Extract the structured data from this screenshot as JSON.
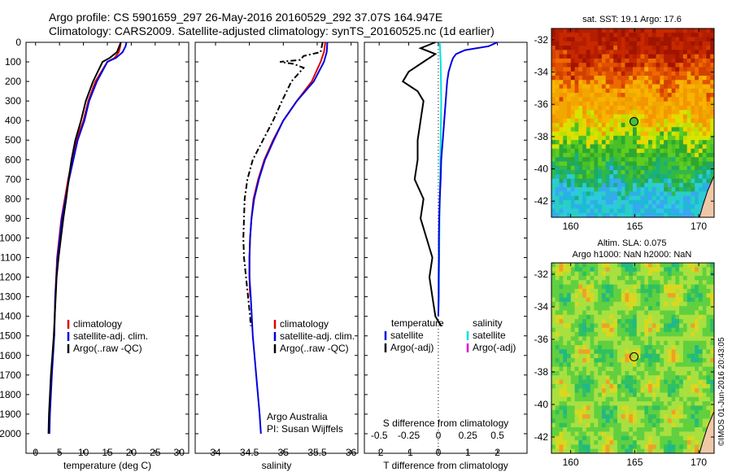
{
  "header": {
    "line1": "Argo profile: CS 5901659_297 26-May-2016 20160529_292 37.07S 164.947E",
    "line2": "Climatology: CARS2009. Satellite-adjusted climatology: synTS_20160525.nc (1d earlier)"
  },
  "credit": "Argo Australia",
  "pi": "PI: Susan Wijffels",
  "stamp": "©IMOS 01-Jun-2016 20:43:05",
  "colors": {
    "climatology": "#e00000",
    "satellite": "#0000e0",
    "argo": "#000000",
    "sat_salinity": "#00e0e0",
    "argo_salinity": "#e000e0"
  },
  "depth_ticks": [
    0,
    100,
    200,
    300,
    400,
    500,
    600,
    700,
    800,
    900,
    1000,
    1100,
    1200,
    1300,
    1400,
    1500,
    1600,
    1700,
    1800,
    1900,
    2000
  ],
  "chart_data": [
    {
      "type": "line",
      "xlabel": "temperature (deg C)",
      "xlim": [
        -2,
        32
      ],
      "xticks": [
        0,
        5,
        10,
        15,
        20,
        25,
        30
      ],
      "ylim": [
        0,
        2100
      ],
      "legend": [
        "climatology",
        "satellite-adj. clim.",
        "Argo(..raw -QC)"
      ],
      "series": [
        {
          "name": "climatology",
          "depth": [
            0,
            20,
            50,
            80,
            100,
            200,
            300,
            400,
            500,
            700,
            900,
            1100,
            1300,
            1500
          ],
          "values": [
            17.8,
            17.7,
            17.4,
            16.5,
            15.0,
            12.5,
            11.0,
            10.0,
            8.5,
            6.8,
            5.4,
            4.5,
            4.1,
            3.9
          ]
        },
        {
          "name": "satellite-adj. clim.",
          "depth": [
            0,
            20,
            50,
            80,
            100,
            200,
            300,
            400,
            500,
            700,
            900,
            1100,
            1300,
            1500,
            1700,
            1900,
            2000
          ],
          "values": [
            19.0,
            18.8,
            18.2,
            16.8,
            15.0,
            12.8,
            11.2,
            10.2,
            8.8,
            7.0,
            5.5,
            4.6,
            4.1,
            3.9,
            3.4,
            3.0,
            2.9
          ]
        },
        {
          "name": "Argo(..raw -QC)",
          "depth": [
            0,
            20,
            50,
            80,
            100,
            200,
            300,
            400,
            500,
            600,
            700,
            800,
            900,
            1000,
            1100,
            1200,
            1300,
            1400,
            1500,
            1600,
            1700,
            1800,
            1900,
            2000
          ],
          "values": [
            17.8,
            17.5,
            17.0,
            15.5,
            14.0,
            12.0,
            10.5,
            9.5,
            8.3,
            7.5,
            6.9,
            6.4,
            5.8,
            5.3,
            4.8,
            4.4,
            4.2,
            4.0,
            3.8,
            3.5,
            3.2,
            3.0,
            2.8,
            2.7
          ]
        }
      ]
    },
    {
      "type": "line",
      "xlabel": "salinity",
      "xlim": [
        33.7,
        36.1
      ],
      "xticks": [
        34,
        34.5,
        35,
        35.5,
        36
      ],
      "ylim": [
        0,
        2100
      ],
      "legend": [
        "climatology",
        "satellite-adj. clim.",
        "Argo(..raw -QC)"
      ],
      "series": [
        {
          "name": "climatology",
          "depth": [
            0,
            50,
            100,
            200,
            300,
            400,
            500,
            600,
            700,
            800,
            900,
            1000,
            1100,
            1200,
            1300
          ],
          "values": [
            35.62,
            35.6,
            35.55,
            35.42,
            35.2,
            35.0,
            34.85,
            34.72,
            34.63,
            34.56,
            34.53,
            34.51,
            34.5,
            34.5,
            34.51
          ]
        },
        {
          "name": "satellite-adj. clim.",
          "depth": [
            0,
            50,
            100,
            200,
            300,
            400,
            500,
            600,
            700,
            800,
            900,
            1000,
            1100,
            1200,
            1300,
            1500,
            1700,
            1900,
            2000
          ],
          "values": [
            35.65,
            35.64,
            35.6,
            35.45,
            35.2,
            35.0,
            34.86,
            34.73,
            34.64,
            34.57,
            34.53,
            34.51,
            34.5,
            34.5,
            34.52,
            34.55,
            34.6,
            34.65,
            34.67
          ]
        },
        {
          "name": "Argo(..raw -QC)",
          "depth": [
            0,
            50,
            70,
            90,
            100,
            110,
            130,
            200,
            300,
            400,
            500,
            600,
            700,
            800,
            900,
            1000,
            1100,
            1200,
            1300,
            1400,
            1450
          ],
          "values": [
            35.58,
            35.55,
            35.3,
            35.25,
            34.95,
            35.15,
            35.3,
            35.12,
            34.98,
            34.85,
            34.7,
            34.55,
            34.47,
            34.43,
            34.42,
            34.41,
            34.42,
            34.45,
            34.48,
            34.51,
            34.52
          ]
        }
      ]
    },
    {
      "type": "line",
      "xlabel": "T difference from climatology",
      "xlabel_top": "S difference from climatology",
      "xlim": [
        -2.5,
        3
      ],
      "xticks": [
        -2,
        -1,
        0,
        1,
        2
      ],
      "xticks_top": [
        "-0.5",
        "-0.25",
        "0",
        "0.25",
        "0.5"
      ],
      "ylim": [
        0,
        2100
      ],
      "legend_temperature": [
        "temperature",
        "satellite",
        "Argo(-adj)"
      ],
      "legend_salinity": [
        "salinity",
        "satellite",
        "Argo(-adj)"
      ],
      "series": [
        {
          "name": "T satellite",
          "depth": [
            0,
            20,
            40,
            60,
            80,
            100,
            150,
            200,
            300,
            400,
            500,
            600,
            700,
            800,
            900,
            1000,
            1100,
            1200,
            1300,
            1400
          ],
          "values": [
            2.0,
            1.7,
            0.9,
            0.6,
            0.5,
            0.45,
            0.35,
            0.3,
            0.25,
            0.2,
            0.15,
            0.1,
            0.08,
            0.05,
            0.03,
            0.02,
            0.02,
            0.01,
            0.01,
            0.0
          ]
        },
        {
          "name": "T Argo(-adj)",
          "depth": [
            0,
            30,
            60,
            100,
            150,
            200,
            250,
            300,
            400,
            500,
            600,
            700,
            800,
            900,
            1000,
            1100,
            1200,
            1300,
            1400,
            1450
          ],
          "values": [
            -0.1,
            -0.6,
            -0.1,
            -0.5,
            -1.0,
            -1.2,
            -0.7,
            -0.5,
            -0.6,
            -0.7,
            -0.7,
            -0.8,
            -0.5,
            -0.6,
            -0.4,
            -0.2,
            -0.3,
            -0.2,
            -0.1,
            0.1
          ]
        },
        {
          "name": "S satellite",
          "depth": [
            0,
            100,
            300,
            500,
            700,
            900,
            1100,
            1300,
            1400
          ],
          "values": [
            0.05,
            0.08,
            0.1,
            0.08,
            0.06,
            0.04,
            0.03,
            0.02,
            0.0
          ]
        }
      ]
    },
    {
      "type": "heatmap",
      "title": "sat. SST: 19.1 Argo: 17.6",
      "xticks": [
        160,
        165,
        170
      ],
      "yticks": [
        -32,
        -34,
        -36,
        -38,
        -40,
        -42
      ],
      "argo_position": {
        "lon": 164.947,
        "lat": -37.07
      }
    },
    {
      "type": "heatmap",
      "title_line1": "Altim. SLA: 0.075",
      "title_line2": "Argo h1000: NaN h2000: NaN",
      "xticks": [
        160,
        165,
        170
      ],
      "yticks": [
        -32,
        -34,
        -36,
        -38,
        -40,
        -42
      ],
      "argo_position": {
        "lon": 164.947,
        "lat": -37.07
      }
    }
  ]
}
